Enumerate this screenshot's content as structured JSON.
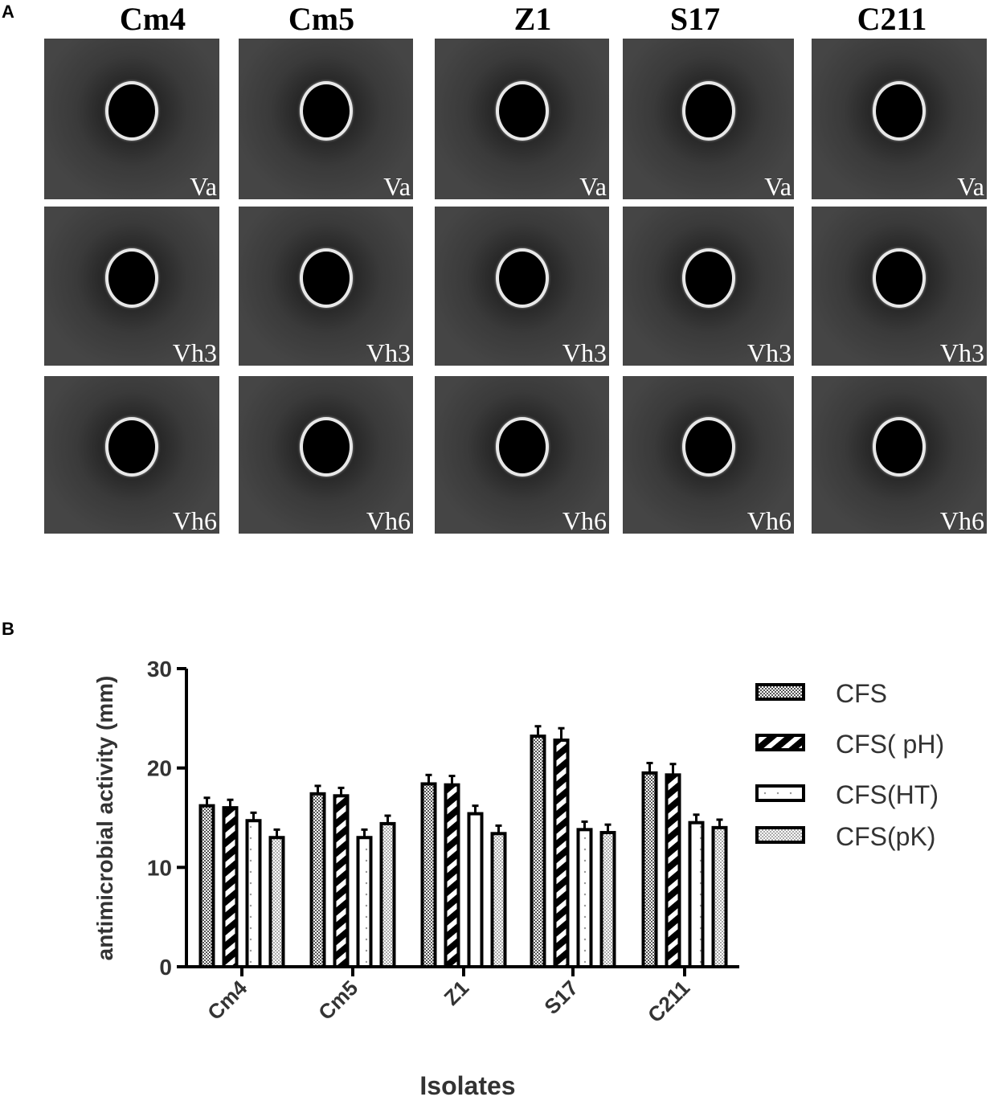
{
  "panel_a": {
    "letter": "A",
    "columns": [
      "Cm4",
      "Cm5",
      "Z1",
      "S17",
      "C211"
    ],
    "rows": [
      "Va",
      "Vh3",
      "Vh6"
    ]
  },
  "panel_b": {
    "letter": "B"
  },
  "chart_data": {
    "type": "bar",
    "title": "",
    "xlabel": "Isolates",
    "ylabel": "antimicrobial activity (mm)",
    "ylim": [
      0,
      30
    ],
    "yticks": [
      "0",
      "10",
      "20",
      "30"
    ],
    "categories": [
      "Cm4",
      "Cm5",
      "Z1",
      "S17",
      "C211"
    ],
    "series": [
      {
        "name": "CFS",
        "pattern": "checker",
        "values": [
          16.2,
          17.4,
          18.4,
          23.2,
          19.5
        ],
        "errors": [
          0.8,
          0.8,
          0.9,
          1.0,
          1.0
        ]
      },
      {
        "name": "CFS( pH)",
        "pattern": "diagonal",
        "values": [
          16.0,
          17.2,
          18.3,
          22.8,
          19.3
        ],
        "errors": [
          0.8,
          0.8,
          0.9,
          1.2,
          1.1
        ]
      },
      {
        "name": "CFS(HT)",
        "pattern": "dotted",
        "values": [
          14.7,
          13.0,
          15.4,
          13.8,
          14.5
        ],
        "errors": [
          0.8,
          0.8,
          0.8,
          0.8,
          0.8
        ]
      },
      {
        "name": "CFS(pK)",
        "pattern": "checker-light",
        "values": [
          13.0,
          14.4,
          13.4,
          13.5,
          14.0
        ],
        "errors": [
          0.8,
          0.8,
          0.8,
          0.8,
          0.8
        ]
      }
    ],
    "legend_position": "right",
    "grid": false
  }
}
